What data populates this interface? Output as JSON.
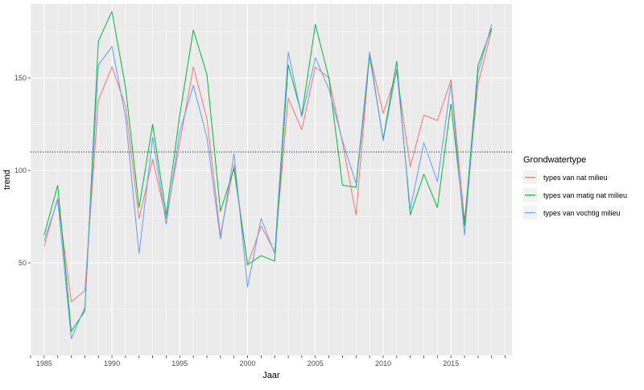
{
  "chart_data": {
    "type": "line",
    "title": "",
    "xlabel": "Jaar",
    "ylabel": "trend",
    "xlim": [
      1984,
      2019.5
    ],
    "ylim": [
      0,
      190
    ],
    "x_ticks": [
      1985,
      1990,
      1995,
      2000,
      2005,
      2010,
      2015
    ],
    "y_ticks": [
      50,
      100,
      150
    ],
    "x_tick_labels": [
      "1985",
      "1990",
      "1995",
      "2000",
      "2005",
      "2010",
      "2015"
    ],
    "y_tick_labels": [
      "50",
      "100",
      "150"
    ],
    "reference_line": {
      "y": 110,
      "style": "dotted"
    },
    "grid": true,
    "legend_position": "right",
    "legend_title": "Grondwatertype",
    "x": [
      1985,
      1986,
      1987,
      1988,
      1989,
      1990,
      1991,
      1992,
      1993,
      1994,
      1995,
      1996,
      1997,
      1998,
      1999,
      2000,
      2001,
      2002,
      2003,
      2004,
      2005,
      2006,
      2007,
      2008,
      2009,
      2010,
      2011,
      2012,
      2013,
      2014,
      2015,
      2016,
      2017,
      2018
    ],
    "series": [
      {
        "name": "types van nat milieu",
        "color": "#F8766D",
        "values": [
          59,
          85,
          29,
          35,
          138,
          156,
          135,
          74,
          106,
          74,
          115,
          156,
          128,
          65,
          103,
          49,
          70,
          56,
          139,
          122,
          156,
          150,
          115,
          76,
          163,
          131,
          153,
          102,
          130,
          127,
          149,
          73,
          147,
          176
        ]
      },
      {
        "name": "types van matig nat milieu",
        "color": "#00BA38",
        "values": [
          65,
          92,
          13,
          24,
          170,
          186,
          145,
          80,
          125,
          76,
          130,
          176,
          152,
          78,
          101,
          49,
          54,
          51,
          157,
          130,
          179,
          150,
          92,
          91,
          162,
          117,
          159,
          76,
          98,
          80,
          136,
          70,
          157,
          177
        ]
      },
      {
        "name": "types van vochtig milieu",
        "color": "#619CFF",
        "values": [
          62,
          84,
          9,
          26,
          157,
          167,
          129,
          55,
          118,
          71,
          121,
          146,
          118,
          63,
          109,
          37,
          74,
          55,
          164,
          129,
          161,
          144,
          116,
          93,
          164,
          116,
          155,
          79,
          115,
          94,
          147,
          65,
          153,
          179
        ]
      }
    ]
  }
}
